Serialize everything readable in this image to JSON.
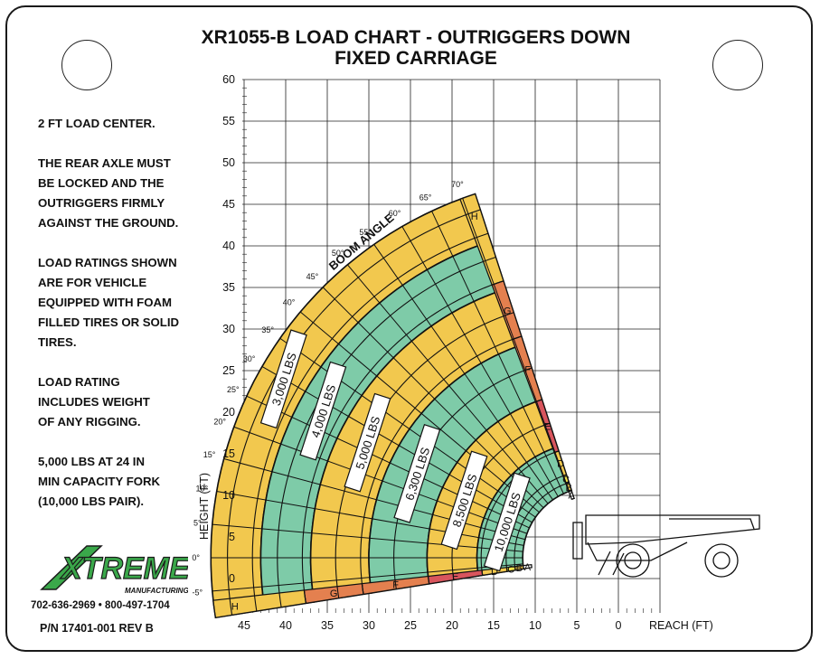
{
  "card": {
    "title_line1": "XR1055-B LOAD CHART - OUTRIGGERS DOWN",
    "title_line2": "FIXED CARRIAGE",
    "notes": [
      "2 FT LOAD CENTER.",
      "THE REAR AXLE MUST\nBE LOCKED AND THE\nOUTRIGGERS FIRMLY\nAGAINST THE GROUND.",
      "LOAD RATINGS SHOWN\nARE FOR VEHICLE\nEQUIPPED WITH FOAM\nFILLED TIRES OR SOLID\nTIRES.",
      "LOAD RATING\nINCLUDES WEIGHT\nOF ANY RIGGING.",
      "5,000 LBS AT 24 IN\nMIN CAPACITY FORK\n(10,000 LBS PAIR)."
    ],
    "logo_text": "XTREME",
    "logo_sub": "MANUFACTURING",
    "phone": "702-636-2969 • 800-497-1704",
    "part_number": "P/N 17401-001 REV B"
  },
  "chart_data": {
    "type": "load-zone chart",
    "xlabel": "REACH (FT)",
    "ylabel": "HEIGHT (FT)",
    "x_ticks": [
      45,
      40,
      35,
      30,
      25,
      20,
      15,
      10,
      5,
      0
    ],
    "y_ticks": [
      0,
      5,
      10,
      15,
      20,
      25,
      30,
      35,
      40,
      45,
      50,
      55,
      60
    ],
    "xlim": [
      45,
      -13
    ],
    "ylim": [
      -3.5,
      60
    ],
    "boom_angle_label": "BOOM ANGLE",
    "boom_angles": [
      -5,
      0,
      5,
      10,
      15,
      20,
      25,
      30,
      35,
      40,
      45,
      50,
      55,
      60,
      65,
      70
    ],
    "extension_bands": [
      "A",
      "B",
      "C",
      "D",
      "E",
      "F",
      "G",
      "H"
    ],
    "capacity_zones": [
      {
        "label": "3,000 LBS",
        "color": "#f2c84e"
      },
      {
        "label": "4,000 LBS",
        "color": "#7ecba8"
      },
      {
        "label": "5,000 LBS",
        "color": "#f2c84e"
      },
      {
        "label": "6,300 LBS",
        "color": "#7ecba8"
      },
      {
        "label": "8,500 LBS",
        "color": "#f2c84e"
      },
      {
        "label": "10,000 LBS",
        "color": "#7ecba8"
      }
    ],
    "band_colors": {
      "A": "#ffffff",
      "B": "#f2c84e",
      "C": "#f4e54c",
      "D": "#f2c84e",
      "E": "#d9555d",
      "F": "#e4804f",
      "G": "#e4804f",
      "H": "#f2c84e"
    },
    "grid": true
  }
}
